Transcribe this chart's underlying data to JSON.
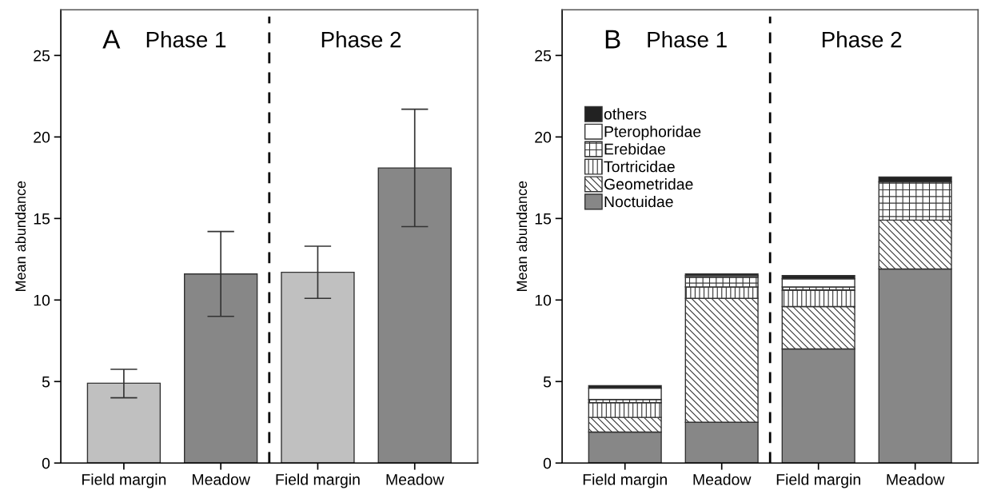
{
  "chart_data": [
    {
      "type": "bar",
      "ylabel": "Mean abundance",
      "categories": [
        "Field margin",
        "Meadow",
        "Field margin",
        "Meadow"
      ],
      "values": [
        4.9,
        11.6,
        11.7,
        18.1
      ],
      "colors": [
        "#c0c0c0",
        "#878787",
        "#c0c0c0",
        "#878787"
      ],
      "errors": [
        [
          4.0,
          5.75
        ],
        [
          9.0,
          14.2
        ],
        [
          10.1,
          13.3
        ],
        [
          14.5,
          21.7
        ]
      ],
      "ylim": [
        0,
        27.8
      ],
      "yticks": [
        0,
        5,
        10,
        15,
        20,
        25
      ],
      "grid": false,
      "legend": false,
      "annotations": [
        "A",
        "Phase 1",
        "Phase 2"
      ]
    },
    {
      "type": "bar",
      "stacked": true,
      "ylabel": "Mean abundance",
      "categories": [
        "Field margin",
        "Meadow",
        "Field margin",
        "Meadow"
      ],
      "series": [
        {
          "name": "Noctuidae",
          "color": "#878787",
          "values": [
            1.9,
            2.5,
            7.0,
            11.9
          ]
        },
        {
          "name": "Geometridae",
          "color": "#333333",
          "values": [
            0.9,
            7.6,
            2.6,
            3.0
          ]
        },
        {
          "name": "Tortricidae",
          "color": "#333333",
          "values": [
            0.9,
            0.7,
            1.0,
            0.0
          ]
        },
        {
          "name": "Erebidae",
          "color": "#333333",
          "values": [
            0.2,
            0.6,
            0.2,
            2.35
          ]
        },
        {
          "name": "Pterophoridae",
          "color": "#ffffff",
          "values": [
            0.7,
            0.1,
            0.5,
            0.0
          ]
        },
        {
          "name": "others",
          "color": "#222222",
          "values": [
            0.15,
            0.1,
            0.2,
            0.3
          ]
        }
      ],
      "ylim": [
        0,
        27.8
      ],
      "yticks": [
        0,
        5,
        10,
        15,
        20,
        25
      ],
      "grid": false,
      "legend": "top left",
      "annotations": [
        "B",
        "Phase 1",
        "Phase 2"
      ]
    }
  ]
}
